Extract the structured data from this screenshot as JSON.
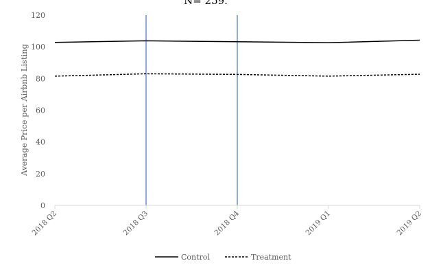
{
  "chart_data": {
    "type": "line",
    "title_fragment": "N= 259.",
    "ylabel": "Average Price per Airbnb Listing",
    "xlabel": "",
    "categories": [
      "2018 Q2",
      "2018 Q3",
      "2018 Q4",
      "2019 Q1",
      "2019 Q2"
    ],
    "ylim": [
      0,
      120
    ],
    "yticks": [
      0,
      20,
      40,
      60,
      80,
      100,
      120
    ],
    "grid": false,
    "legend_position": "bottom",
    "series": [
      {
        "name": "Control",
        "values": [
          102.8,
          103.8,
          103.2,
          102.6,
          104.2
        ],
        "style": "solid",
        "color": "#000000"
      },
      {
        "name": "Treatment",
        "values": [
          81.5,
          83.0,
          82.6,
          81.5,
          82.7
        ],
        "style": "dashed",
        "color": "#000000"
      }
    ],
    "reference_lines": [
      {
        "category": "2018 Q3",
        "color": "#4472C4"
      },
      {
        "category": "2018 Q4",
        "color": "#4472C4"
      }
    ]
  }
}
